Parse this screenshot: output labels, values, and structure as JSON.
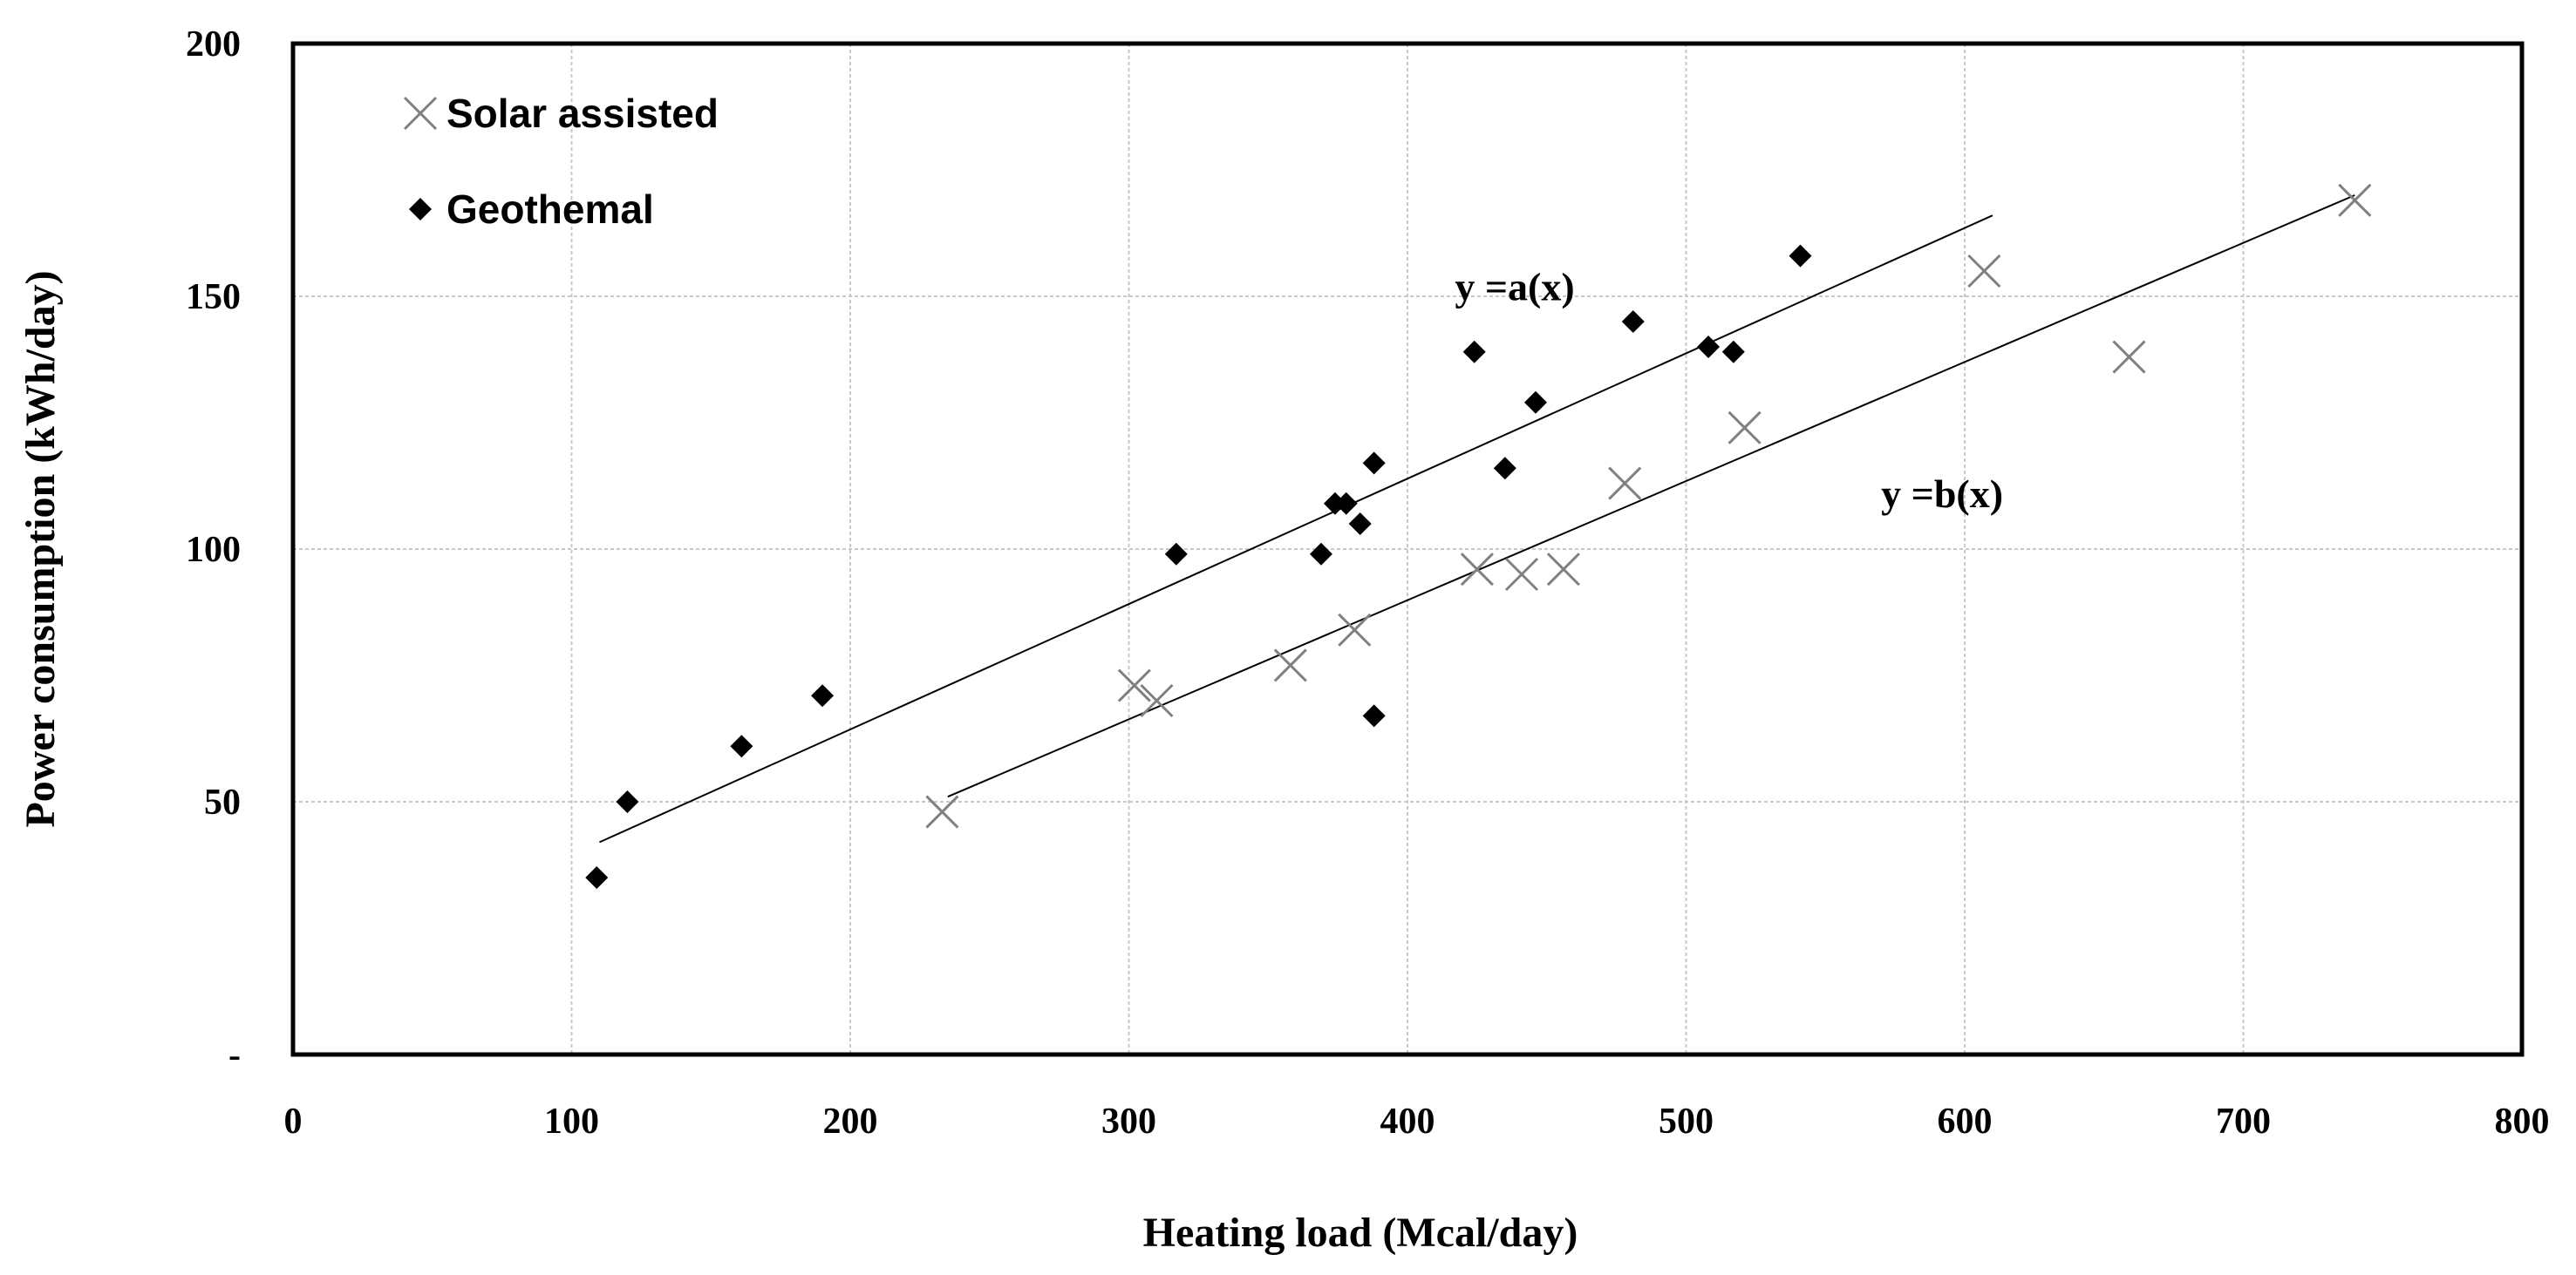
{
  "chart_data": {
    "type": "scatter",
    "title": "",
    "xlabel": "Heating load (Mcal/day)",
    "ylabel": "Power consumption  (kWh/day)",
    "xlim": [
      0,
      800
    ],
    "ylim": [
      0,
      200
    ],
    "x_ticks": [
      "0",
      "100",
      "200",
      "300",
      "400",
      "500",
      "600",
      "700",
      "800"
    ],
    "y_ticks": [
      "-",
      "50",
      "100",
      "150",
      "200"
    ],
    "grid": true,
    "legend_position": "top-left",
    "series": [
      {
        "name": "Solar assisted",
        "marker": "x",
        "color": "#808080",
        "points": [
          [
            233,
            48
          ],
          [
            302,
            73
          ],
          [
            310,
            70
          ],
          [
            358,
            77
          ],
          [
            381,
            84
          ],
          [
            425,
            96
          ],
          [
            441,
            95
          ],
          [
            456,
            96
          ],
          [
            478,
            113
          ],
          [
            521,
            124
          ],
          [
            607,
            155
          ],
          [
            659,
            138
          ],
          [
            740,
            169
          ]
        ]
      },
      {
        "name": "Geothemal",
        "marker": "diamond",
        "color": "#000000",
        "points": [
          [
            109,
            35
          ],
          [
            120,
            50
          ],
          [
            161,
            61
          ],
          [
            190,
            71
          ],
          [
            317,
            99
          ],
          [
            369,
            99
          ],
          [
            374,
            109
          ],
          [
            378,
            109
          ],
          [
            383,
            105
          ],
          [
            388,
            117
          ],
          [
            388,
            67
          ],
          [
            424,
            139
          ],
          [
            435,
            116
          ],
          [
            446,
            129
          ],
          [
            481,
            145
          ],
          [
            508,
            140
          ],
          [
            517,
            139
          ],
          [
            541,
            158
          ]
        ]
      }
    ],
    "trendlines": [
      {
        "label": "y =a(x)",
        "series": "Geothemal",
        "from": [
          110,
          42
        ],
        "to": [
          610,
          166
        ],
        "label_at": [
          417,
          152
        ]
      },
      {
        "label": "y =b(x)",
        "series": "Solar assisted",
        "from": [
          235,
          51
        ],
        "to": [
          740,
          170
        ],
        "label_at": [
          570,
          111
        ]
      }
    ]
  }
}
